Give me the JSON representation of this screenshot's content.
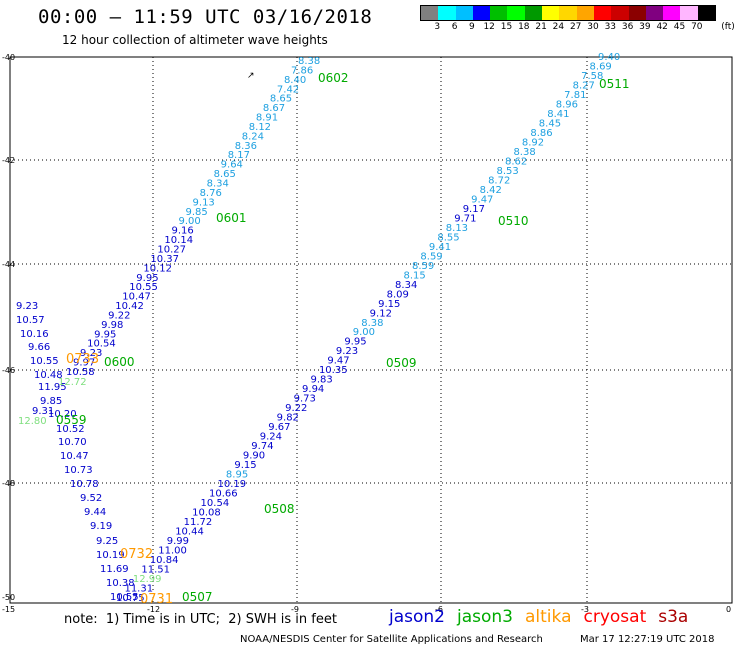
{
  "header": {
    "title": "00:00 – 11:59 UTC 03/16/2018",
    "subtitle": "12 hour collection of altimeter wave heights"
  },
  "colorbar": {
    "unit_label": "(ft)",
    "ticks": [
      "3",
      "6",
      "9",
      "12",
      "15",
      "18",
      "21",
      "24",
      "27",
      "30",
      "33",
      "36",
      "39",
      "42",
      "45",
      "70"
    ],
    "colors": [
      "#808080",
      "#00ffff",
      "#00bfff",
      "#0000ff",
      "#00bf00",
      "#00ff00",
      "#009900",
      "#ffff00",
      "#ffd700",
      "#ffa500",
      "#ff0000",
      "#cc0000",
      "#8b0000",
      "#800080",
      "#ff00ff",
      "#ffb6ff",
      "#000000"
    ]
  },
  "map": {
    "lat_labels": [
      "-40",
      "-42",
      "-44",
      "-46",
      "-48",
      "-50"
    ],
    "lon_labels": [
      "-15",
      "-12",
      "-9",
      "-6",
      "-3",
      "0"
    ],
    "track_colors": {
      "jason2": "#0000cc",
      "jason3": "#00aa00",
      "altika": "#ff9900",
      "cryosat": "#ff0000",
      "s3a": "#aa0000",
      "jason2_light": "#1ea0e0",
      "jason3_light": "#7fdf7f"
    },
    "time_labels": [
      {
        "text": "0602",
        "sat": "jason3"
      },
      {
        "text": "0511",
        "sat": "jason3"
      },
      {
        "text": "0601",
        "sat": "jason3"
      },
      {
        "text": "0510",
        "sat": "jason3"
      },
      {
        "text": "0600",
        "sat": "jason3"
      },
      {
        "text": "0509",
        "sat": "jason3"
      },
      {
        "text": "0559",
        "sat": "jason3"
      },
      {
        "text": "0508",
        "sat": "jason3"
      },
      {
        "text": "0732",
        "sat": "altika"
      },
      {
        "text": "0731",
        "sat": "altika"
      },
      {
        "text": "0507",
        "sat": "jason3"
      },
      {
        "text": "0733",
        "sat": "altika"
      }
    ],
    "track_a_values": [
      "8.38",
      "7.86",
      "8.40",
      "7.42",
      "8.65",
      "8.67",
      "8.91",
      "8.12",
      "8.24",
      "8.36",
      "8.17",
      "9.64",
      "8.65",
      "8.34",
      "8.76",
      "9.13",
      "9.85",
      "9.00",
      "9.16",
      "10.14",
      "10.27",
      "10.37",
      "10.12",
      "9.95",
      "10.55",
      "10.47",
      "10.42",
      "9.22",
      "9.98",
      "9.95",
      "10.54",
      "9.23",
      "9.97",
      "10.58"
    ],
    "track_b_values": [
      "9.40",
      "8.69",
      "7.58",
      "8.27",
      "7.81",
      "8.96",
      "8.41",
      "8.45",
      "8.86",
      "8.92",
      "8.38",
      "8.62",
      "8.53",
      "8.72",
      "8.42",
      "9.47",
      "9.17",
      "9.71",
      "8.13",
      "8.55",
      "9.41",
      "8.59",
      "8.59",
      "8.15",
      "8.34",
      "8.09",
      "9.15",
      "9.12",
      "8.38",
      "9.00",
      "9.95",
      "9.23",
      "9.47",
      "10.35",
      "9.83",
      "9.94",
      "9.73",
      "9.22",
      "9.82",
      "9.67",
      "9.24",
      "9.74",
      "9.90",
      "9.15",
      "8.95",
      "10.19",
      "10.66",
      "10.54",
      "10.08",
      "11.72",
      "10.44",
      "9.99",
      "11.00",
      "10.84",
      "11.51",
      "12.99",
      "11.31",
      "10.75"
    ],
    "track_c_values": [
      "9.23",
      "10.57",
      "10.16",
      "9.66",
      "10.55",
      "10.48",
      "11.95",
      "9.85",
      "9.31",
      "12.80",
      "10.20",
      "10.52",
      "10.70",
      "10.47",
      "10.73",
      "10.78",
      "9.52",
      "9.44",
      "9.19",
      "9.25",
      "10.19",
      "11.69",
      "10.38",
      "10.55"
    ],
    "track_c_light": [
      "12.72"
    ]
  },
  "footer": {
    "note": "note:  1) Time is in UTC;  2) SWH is in feet",
    "legend": [
      {
        "name": "jason2",
        "color": "#0000cc"
      },
      {
        "name": "jason3",
        "color": "#00aa00"
      },
      {
        "name": "altika",
        "color": "#ff9900"
      },
      {
        "name": "cryosat",
        "color": "#ff0000"
      },
      {
        "name": "s3a",
        "color": "#aa0000"
      }
    ],
    "credit": "NOAA/NESDIS Center for Satellite Applications and Research",
    "timestamp": "Mar 17 12:27:19 UTC 2018"
  }
}
